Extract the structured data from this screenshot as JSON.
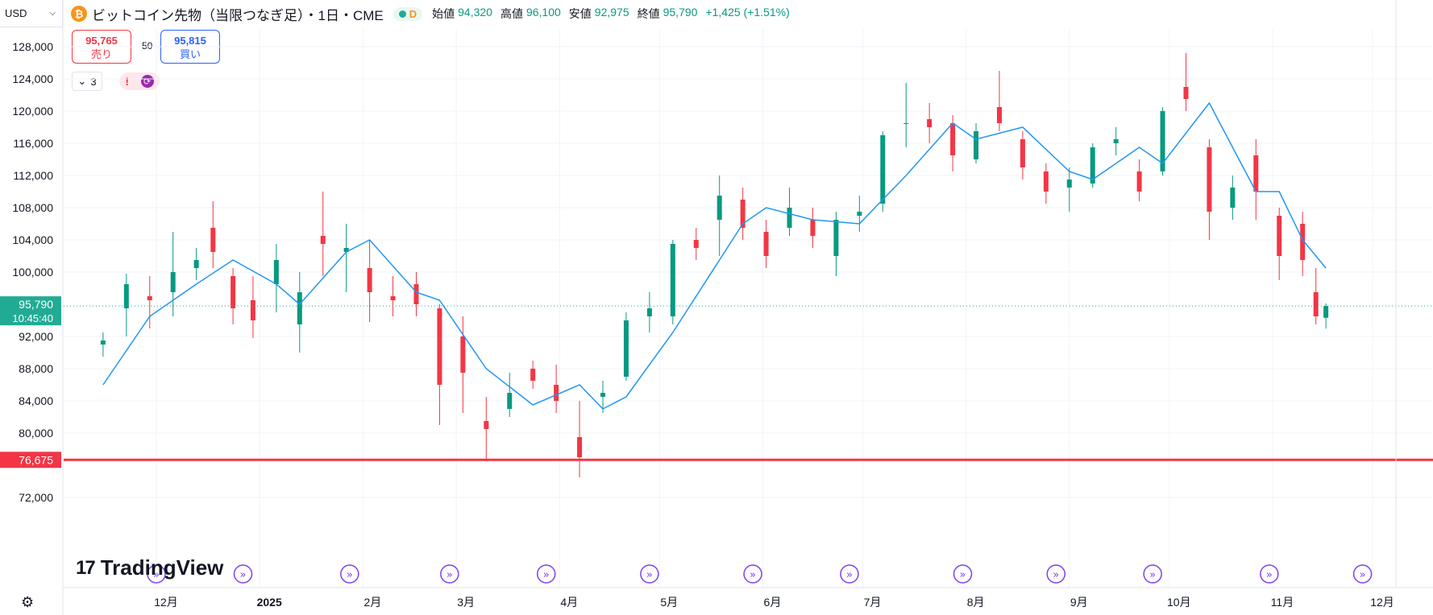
{
  "toolbar": {
    "currency": "USD"
  },
  "legend": {
    "symbol_icon": "bitcoin-icon",
    "title": "ビットコイン先物（当限つなぎ足）・1日・CME",
    "interval_letter": "D",
    "open_label": "始値",
    "open": "94,320",
    "high_label": "高値",
    "high": "96,100",
    "low_label": "安値",
    "low": "92,975",
    "close_label": "終値",
    "close": "95,790",
    "change": "+1,425 (+1.51%)"
  },
  "trade": {
    "sell_price": "95,765",
    "sell_label": "売り",
    "spread": "50",
    "buy_price": "95,815",
    "buy_label": "買い"
  },
  "indicators": {
    "collapsed_count": "3"
  },
  "price_axis": {
    "ticks": [
      "128,000",
      "124,000",
      "120,000",
      "116,000",
      "112,000",
      "108,000",
      "104,000",
      "100,000",
      "92,000",
      "88,000",
      "84,000",
      "80,000",
      "72,000"
    ],
    "last_price": "95,790",
    "countdown": "10:45:40",
    "hline_price": "76,675",
    "hline_color": "#f23645"
  },
  "time_axis": {
    "labels": [
      "12月",
      "2025",
      "2月",
      "3月",
      "4月",
      "5月",
      "6月",
      "7月",
      "8月",
      "9月",
      "10月",
      "11月",
      "12月"
    ]
  },
  "colors": {
    "up": "#089981",
    "down": "#f23645",
    "ma": "#2196f3",
    "last_price_bg": "#22ab94"
  },
  "branding": {
    "logo": "TradingView"
  },
  "chart_data": {
    "type": "candlestick",
    "interval": "1D",
    "ylim": [
      70000,
      130000
    ],
    "hline": 76675,
    "last": 95790,
    "series": [
      {
        "x": "2024-11-15",
        "o": 91000,
        "h": 92500,
        "l": 89500,
        "c": 91500
      },
      {
        "x": "2024-11-22",
        "o": 95500,
        "h": 99800,
        "l": 92000,
        "c": 98500
      },
      {
        "x": "2024-11-29",
        "o": 97000,
        "h": 99500,
        "l": 93000,
        "c": 96500
      },
      {
        "x": "2024-12-06",
        "o": 97500,
        "h": 105000,
        "l": 94500,
        "c": 100000
      },
      {
        "x": "2024-12-13",
        "o": 100500,
        "h": 103000,
        "l": 99000,
        "c": 101500
      },
      {
        "x": "2024-12-18",
        "o": 105500,
        "h": 108800,
        "l": 100500,
        "c": 102500
      },
      {
        "x": "2024-12-24",
        "o": 99500,
        "h": 100500,
        "l": 93500,
        "c": 95500
      },
      {
        "x": "2024-12-30",
        "o": 96500,
        "h": 99500,
        "l": 91800,
        "c": 94000
      },
      {
        "x": "2025-01-06",
        "o": 98500,
        "h": 103500,
        "l": 95000,
        "c": 101500
      },
      {
        "x": "2025-01-13",
        "o": 93500,
        "h": 100000,
        "l": 90000,
        "c": 97500
      },
      {
        "x": "2025-01-20",
        "o": 104500,
        "h": 110000,
        "l": 99500,
        "c": 103500
      },
      {
        "x": "2025-01-27",
        "o": 102500,
        "h": 106000,
        "l": 97500,
        "c": 103000
      },
      {
        "x": "2025-02-03",
        "o": 100500,
        "h": 104000,
        "l": 93800,
        "c": 97500
      },
      {
        "x": "2025-02-10",
        "o": 97000,
        "h": 99500,
        "l": 94500,
        "c": 96500
      },
      {
        "x": "2025-02-17",
        "o": 98500,
        "h": 100000,
        "l": 94500,
        "c": 96000
      },
      {
        "x": "2025-02-24",
        "o": 95500,
        "h": 96000,
        "l": 81000,
        "c": 86000
      },
      {
        "x": "2025-03-03",
        "o": 92000,
        "h": 94500,
        "l": 82500,
        "c": 87500
      },
      {
        "x": "2025-03-10",
        "o": 81500,
        "h": 84500,
        "l": 76500,
        "c": 80500
      },
      {
        "x": "2025-03-17",
        "o": 83000,
        "h": 87500,
        "l": 82000,
        "c": 85000
      },
      {
        "x": "2025-03-24",
        "o": 88000,
        "h": 89000,
        "l": 85500,
        "c": 86500
      },
      {
        "x": "2025-03-31",
        "o": 86000,
        "h": 88500,
        "l": 82500,
        "c": 84000
      },
      {
        "x": "2025-04-07",
        "o": 79500,
        "h": 84000,
        "l": 74500,
        "c": 77000
      },
      {
        "x": "2025-04-14",
        "o": 84500,
        "h": 86500,
        "l": 82500,
        "c": 85000
      },
      {
        "x": "2025-04-21",
        "o": 87000,
        "h": 95000,
        "l": 86500,
        "c": 94000
      },
      {
        "x": "2025-04-28",
        "o": 94500,
        "h": 97500,
        "l": 92500,
        "c": 95500
      },
      {
        "x": "2025-05-05",
        "o": 94500,
        "h": 104000,
        "l": 93500,
        "c": 103500
      },
      {
        "x": "2025-05-12",
        "o": 104000,
        "h": 105500,
        "l": 101500,
        "c": 103000
      },
      {
        "x": "2025-05-19",
        "o": 106500,
        "h": 112000,
        "l": 102000,
        "c": 109500
      },
      {
        "x": "2025-05-26",
        "o": 109000,
        "h": 110500,
        "l": 104000,
        "c": 105500
      },
      {
        "x": "2025-06-02",
        "o": 105000,
        "h": 106500,
        "l": 100500,
        "c": 102000
      },
      {
        "x": "2025-06-09",
        "o": 105500,
        "h": 110500,
        "l": 104500,
        "c": 108000
      },
      {
        "x": "2025-06-16",
        "o": 106500,
        "h": 108000,
        "l": 103000,
        "c": 104500
      },
      {
        "x": "2025-06-23",
        "o": 102000,
        "h": 107500,
        "l": 99500,
        "c": 106500
      },
      {
        "x": "2025-06-30",
        "o": 107000,
        "h": 109500,
        "l": 105000,
        "c": 107500
      },
      {
        "x": "2025-07-07",
        "o": 108500,
        "h": 117500,
        "l": 107500,
        "c": 117000
      },
      {
        "x": "2025-07-14",
        "o": 118500,
        "h": 123500,
        "l": 115500,
        "c": 118500
      },
      {
        "x": "2025-07-21",
        "o": 119000,
        "h": 121000,
        "l": 116000,
        "c": 118000
      },
      {
        "x": "2025-07-28",
        "o": 118500,
        "h": 119500,
        "l": 112500,
        "c": 114500
      },
      {
        "x": "2025-08-04",
        "o": 114000,
        "h": 118500,
        "l": 113500,
        "c": 117500
      },
      {
        "x": "2025-08-11",
        "o": 120500,
        "h": 125000,
        "l": 117500,
        "c": 118500
      },
      {
        "x": "2025-08-18",
        "o": 116500,
        "h": 117500,
        "l": 111500,
        "c": 113000
      },
      {
        "x": "2025-08-25",
        "o": 112500,
        "h": 113500,
        "l": 108500,
        "c": 110000
      },
      {
        "x": "2025-09-01",
        "o": 110500,
        "h": 113000,
        "l": 107500,
        "c": 111500
      },
      {
        "x": "2025-09-08",
        "o": 111000,
        "h": 116000,
        "l": 110500,
        "c": 115500
      },
      {
        "x": "2025-09-15",
        "o": 116000,
        "h": 118000,
        "l": 114500,
        "c": 116500
      },
      {
        "x": "2025-09-22",
        "o": 112500,
        "h": 114000,
        "l": 108800,
        "c": 110000
      },
      {
        "x": "2025-09-29",
        "o": 112500,
        "h": 120500,
        "l": 112000,
        "c": 120000
      },
      {
        "x": "2025-10-06",
        "o": 123000,
        "h": 127200,
        "l": 120000,
        "c": 121500
      },
      {
        "x": "2025-10-13",
        "o": 115500,
        "h": 116500,
        "l": 104000,
        "c": 107500
      },
      {
        "x": "2025-10-20",
        "o": 108000,
        "h": 112000,
        "l": 106500,
        "c": 110500
      },
      {
        "x": "2025-10-27",
        "o": 114500,
        "h": 116500,
        "l": 106500,
        "c": 110000
      },
      {
        "x": "2025-11-03",
        "o": 107000,
        "h": 108000,
        "l": 99000,
        "c": 102000
      },
      {
        "x": "2025-11-10",
        "o": 106000,
        "h": 107500,
        "l": 99500,
        "c": 101500
      },
      {
        "x": "2025-11-14",
        "o": 97500,
        "h": 100500,
        "l": 93500,
        "c": 94500
      },
      {
        "x": "2025-11-17",
        "o": 94320,
        "h": 96100,
        "l": 92975,
        "c": 95790
      }
    ],
    "ma_line": [
      {
        "x": "2024-11-15",
        "y": 86000
      },
      {
        "x": "2024-11-29",
        "y": 94500
      },
      {
        "x": "2024-12-13",
        "y": 98500
      },
      {
        "x": "2024-12-24",
        "y": 101500
      },
      {
        "x": "2025-01-06",
        "y": 98500
      },
      {
        "x": "2025-01-13",
        "y": 96000
      },
      {
        "x": "2025-01-27",
        "y": 102500
      },
      {
        "x": "2025-02-03",
        "y": 104000
      },
      {
        "x": "2025-02-17",
        "y": 97500
      },
      {
        "x": "2025-02-24",
        "y": 96500
      },
      {
        "x": "2025-03-10",
        "y": 88000
      },
      {
        "x": "2025-03-24",
        "y": 83500
      },
      {
        "x": "2025-04-07",
        "y": 86000
      },
      {
        "x": "2025-04-14",
        "y": 83000
      },
      {
        "x": "2025-04-21",
        "y": 84500
      },
      {
        "x": "2025-05-05",
        "y": 92500
      },
      {
        "x": "2025-05-19",
        "y": 101500
      },
      {
        "x": "2025-05-26",
        "y": 106000
      },
      {
        "x": "2025-06-02",
        "y": 108000
      },
      {
        "x": "2025-06-16",
        "y": 106500
      },
      {
        "x": "2025-06-30",
        "y": 106000
      },
      {
        "x": "2025-07-14",
        "y": 112000
      },
      {
        "x": "2025-07-28",
        "y": 118500
      },
      {
        "x": "2025-08-04",
        "y": 116500
      },
      {
        "x": "2025-08-18",
        "y": 118000
      },
      {
        "x": "2025-09-01",
        "y": 112500
      },
      {
        "x": "2025-09-08",
        "y": 111500
      },
      {
        "x": "2025-09-22",
        "y": 115500
      },
      {
        "x": "2025-09-29",
        "y": 113500
      },
      {
        "x": "2025-10-13",
        "y": 121000
      },
      {
        "x": "2025-10-27",
        "y": 110000
      },
      {
        "x": "2025-11-03",
        "y": 110000
      },
      {
        "x": "2025-11-10",
        "y": 104000
      },
      {
        "x": "2025-11-17",
        "y": 100500
      }
    ],
    "event_markers": [
      "2024-12-01",
      "2024-12-27",
      "2025-01-28",
      "2025-02-27",
      "2025-03-28",
      "2025-04-28",
      "2025-05-29",
      "2025-06-27",
      "2025-07-31",
      "2025-08-28",
      "2025-09-26",
      "2025-10-31",
      "2025-11-28"
    ]
  }
}
